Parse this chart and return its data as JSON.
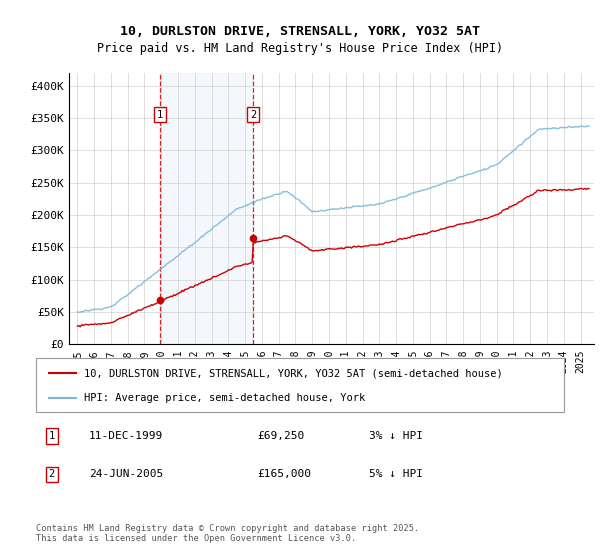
{
  "title": "10, DURLSTON DRIVE, STRENSALL, YORK, YO32 5AT",
  "subtitle": "Price paid vs. HM Land Registry's House Price Index (HPI)",
  "legend_line1": "10, DURLSTON DRIVE, STRENSALL, YORK, YO32 5AT (semi-detached house)",
  "legend_line2": "HPI: Average price, semi-detached house, York",
  "annotation1_date": "11-DEC-1999",
  "annotation1_price": "£69,250",
  "annotation1_pct": "3% ↓ HPI",
  "annotation2_date": "24-JUN-2005",
  "annotation2_price": "£165,000",
  "annotation2_pct": "5% ↓ HPI",
  "footnote": "Contains HM Land Registry data © Crown copyright and database right 2025.\nThis data is licensed under the Open Government Licence v3.0.",
  "sale1_year": 1999.92,
  "sale1_price": 69250,
  "sale2_year": 2005.47,
  "sale2_price": 165000,
  "hpi_color": "#7ab8d9",
  "property_color": "#cc0000",
  "shading_color": "#ddeeff",
  "dashed_color": "#cc0000",
  "ylim_min": 0,
  "ylim_max": 420000,
  "yticks": [
    0,
    50000,
    100000,
    150000,
    200000,
    250000,
    300000,
    350000,
    400000
  ],
  "xlim_min": 1994.5,
  "xlim_max": 2025.8
}
